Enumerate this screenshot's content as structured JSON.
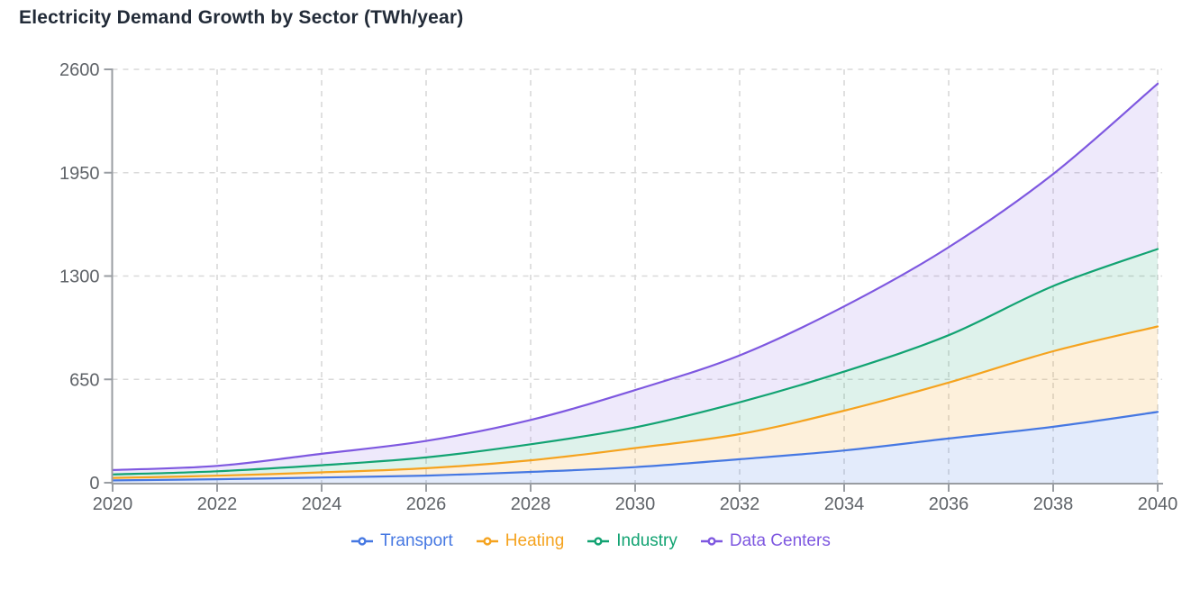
{
  "chart_data": {
    "type": "area",
    "stacked": true,
    "title": "Electricity Demand Growth by Sector (TWh/year)",
    "xlabel": "",
    "ylabel": "",
    "x": [
      2020,
      2022,
      2024,
      2026,
      2028,
      2030,
      2032,
      2034,
      2036,
      2038,
      2040
    ],
    "x_tick_labels": [
      "2020",
      "2022",
      "2024",
      "2026",
      "2028",
      "2030",
      "2032",
      "2034",
      "2036",
      "2038",
      "2040"
    ],
    "y_ticks": [
      0,
      650,
      1300,
      1950,
      2600
    ],
    "y_tick_labels": [
      "0",
      "650",
      "1300",
      "1950",
      "2600"
    ],
    "ylim": [
      0,
      2600
    ],
    "grid": "dashed",
    "legend_position": "bottom",
    "series": [
      {
        "name": "Transport",
        "color": "#4678e2",
        "fill": "rgba(70,120,226,0.15)",
        "values": [
          15,
          22,
          33,
          45,
          68,
          98,
          148,
          203,
          278,
          352,
          445
        ]
      },
      {
        "name": "Heating",
        "color": "#f5a31f",
        "fill": "rgba(245,163,31,0.16)",
        "values": [
          15,
          22,
          32,
          46,
          73,
          120,
          158,
          250,
          352,
          475,
          538
        ]
      },
      {
        "name": "Industry",
        "color": "#12a372",
        "fill": "rgba(18,163,114,0.14)",
        "values": [
          22,
          28,
          45,
          68,
          101,
          130,
          200,
          246,
          298,
          410,
          487
        ]
      },
      {
        "name": "Data Centers",
        "color": "#7e58e0",
        "fill": "rgba(126,88,224,0.13)",
        "values": [
          28,
          34,
          72,
          104,
          153,
          235,
          295,
          410,
          553,
          705,
          1040
        ]
      }
    ]
  },
  "style": {
    "title_color": "#222b38",
    "axis_color": "#999da2",
    "grid_color": "#d9d9d9",
    "tick_label_color": "#5f6368",
    "background": "#ffffff"
  }
}
